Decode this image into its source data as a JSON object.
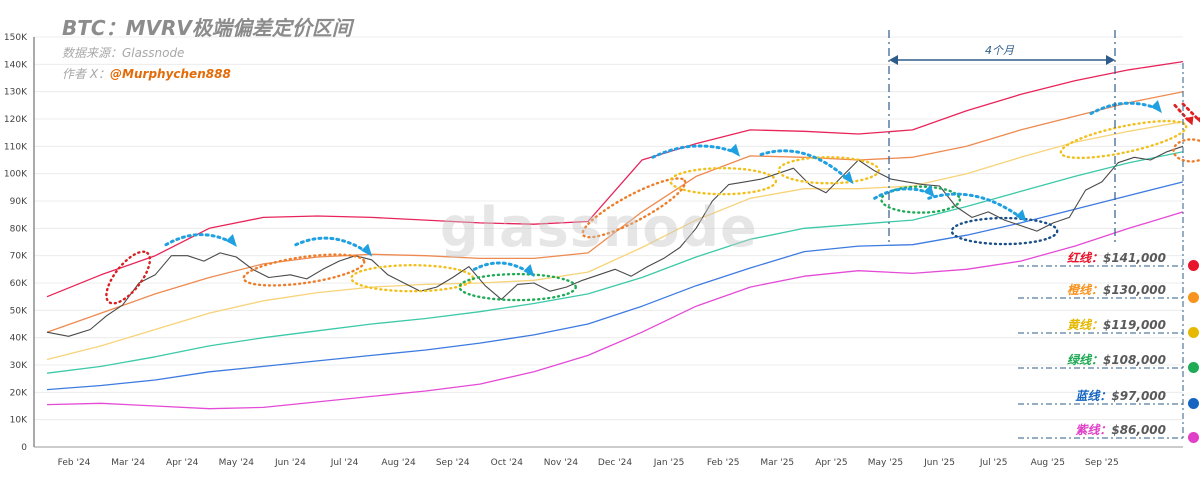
{
  "header": {
    "title": "BTC：MVRV极端偏差定价区间",
    "source": "数据来源：Glassnode",
    "author_prefix": "作者 X：",
    "author_handle": "@Murphychen888",
    "watermark": "glassnode"
  },
  "annotation": {
    "span_label": "4个月"
  },
  "levels": [
    {
      "label": "红线：",
      "value": "$141,000",
      "color": "#e8142c"
    },
    {
      "label": "橙线：",
      "value": "$130,000",
      "color": "#f7931e"
    },
    {
      "label": "黄线：",
      "value": "$119,000",
      "color": "#e6b800"
    },
    {
      "label": "绿线：",
      "value": "$108,000",
      "color": "#1faa55"
    },
    {
      "label": "蓝线：",
      "value": "$97,000",
      "color": "#1565c0"
    },
    {
      "label": "紫线：",
      "value": "$86,000",
      "color": "#e040c8"
    }
  ],
  "chart_data": {
    "type": "line",
    "title": "BTC：MVRV极端偏差定价区间",
    "ylim": [
      0,
      150000
    ],
    "yticks": [
      0,
      10000,
      20000,
      30000,
      40000,
      50000,
      60000,
      70000,
      80000,
      90000,
      100000,
      110000,
      120000,
      130000,
      140000,
      150000
    ],
    "ytick_labels": [
      "0",
      "10K",
      "20K",
      "30K",
      "40K",
      "50K",
      "60K",
      "70K",
      "80K",
      "90K",
      "100K",
      "110K",
      "120K",
      "130K",
      "140K",
      "150K"
    ],
    "x_labels": [
      "Feb '24",
      "Mar '24",
      "Apr '24",
      "May '24",
      "Jun '24",
      "Jul '24",
      "Aug '24",
      "Sep '24",
      "Oct '24",
      "Nov '24",
      "Dec '24",
      "Jan '25",
      "Feb '25",
      "Mar '25",
      "Apr '25",
      "May '25",
      "Jun '25",
      "Jul '25",
      "Aug '25",
      "Sep '25"
    ],
    "x_range_months": [
      0,
      21
    ],
    "grid": true,
    "series": [
      {
        "key": "red",
        "color": "#e8245a",
        "width": 1.3,
        "points": [
          [
            0,
            55000
          ],
          [
            1,
            63000
          ],
          [
            2,
            70000
          ],
          [
            3,
            80000
          ],
          [
            4,
            84000
          ],
          [
            5,
            84500
          ],
          [
            6,
            84000
          ],
          [
            7,
            83000
          ],
          [
            8,
            82000
          ],
          [
            9,
            81500
          ],
          [
            10,
            82500
          ],
          [
            11,
            105000
          ],
          [
            12,
            111000
          ],
          [
            13,
            116000
          ],
          [
            14,
            115500
          ],
          [
            15,
            114500
          ],
          [
            16,
            116000
          ],
          [
            17,
            123000
          ],
          [
            18,
            129000
          ],
          [
            19,
            134000
          ],
          [
            20,
            138000
          ],
          [
            21,
            141000
          ]
        ]
      },
      {
        "key": "orange",
        "color": "#ee8a50",
        "width": 1.3,
        "points": [
          [
            0,
            42000
          ],
          [
            1,
            49000
          ],
          [
            2,
            56000
          ],
          [
            3,
            62000
          ],
          [
            4,
            67000
          ],
          [
            5,
            69500
          ],
          [
            6,
            70500
          ],
          [
            7,
            70000
          ],
          [
            8,
            69000
          ],
          [
            9,
            69000
          ],
          [
            10,
            71000
          ],
          [
            11,
            86000
          ],
          [
            12,
            99000
          ],
          [
            13,
            106500
          ],
          [
            14,
            106000
          ],
          [
            15,
            105000
          ],
          [
            16,
            106000
          ],
          [
            17,
            110000
          ],
          [
            18,
            116000
          ],
          [
            19,
            121000
          ],
          [
            20,
            126000
          ],
          [
            21,
            130000
          ]
        ]
      },
      {
        "key": "yellow",
        "color": "#f7d37a",
        "width": 1.3,
        "points": [
          [
            0,
            32000
          ],
          [
            1,
            37000
          ],
          [
            2,
            43000
          ],
          [
            3,
            49000
          ],
          [
            4,
            53500
          ],
          [
            5,
            56500
          ],
          [
            6,
            58500
          ],
          [
            7,
            59500
          ],
          [
            8,
            60000
          ],
          [
            9,
            61000
          ],
          [
            10,
            64000
          ],
          [
            11,
            73000
          ],
          [
            12,
            83000
          ],
          [
            13,
            91000
          ],
          [
            14,
            94500
          ],
          [
            15,
            94500
          ],
          [
            16,
            95500
          ],
          [
            17,
            100000
          ],
          [
            18,
            106000
          ],
          [
            19,
            111500
          ],
          [
            20,
            115500
          ],
          [
            21,
            119000
          ]
        ]
      },
      {
        "key": "green",
        "color": "#3cc9a8",
        "width": 1.3,
        "points": [
          [
            0,
            27000
          ],
          [
            1,
            29500
          ],
          [
            2,
            33000
          ],
          [
            3,
            37000
          ],
          [
            4,
            40000
          ],
          [
            5,
            42500
          ],
          [
            6,
            45000
          ],
          [
            7,
            47000
          ],
          [
            8,
            49500
          ],
          [
            9,
            52500
          ],
          [
            10,
            56000
          ],
          [
            11,
            62000
          ],
          [
            12,
            69500
          ],
          [
            13,
            76000
          ],
          [
            14,
            80000
          ],
          [
            15,
            81500
          ],
          [
            16,
            83000
          ],
          [
            17,
            88000
          ],
          [
            18,
            93500
          ],
          [
            19,
            99000
          ],
          [
            20,
            104000
          ],
          [
            21,
            108000
          ]
        ]
      },
      {
        "key": "blue",
        "color": "#3d7be0",
        "width": 1.3,
        "points": [
          [
            0,
            21000
          ],
          [
            1,
            22500
          ],
          [
            2,
            24500
          ],
          [
            3,
            27500
          ],
          [
            4,
            29500
          ],
          [
            5,
            31500
          ],
          [
            6,
            33500
          ],
          [
            7,
            35500
          ],
          [
            8,
            38000
          ],
          [
            9,
            41000
          ],
          [
            10,
            45000
          ],
          [
            11,
            51500
          ],
          [
            12,
            59000
          ],
          [
            13,
            65500
          ],
          [
            14,
            71500
          ],
          [
            15,
            73500
          ],
          [
            16,
            74000
          ],
          [
            17,
            77500
          ],
          [
            18,
            82000
          ],
          [
            19,
            87000
          ],
          [
            20,
            92000
          ],
          [
            21,
            97000
          ]
        ]
      },
      {
        "key": "purple",
        "color": "#e44bd6",
        "width": 1.3,
        "points": [
          [
            0,
            15500
          ],
          [
            1,
            16000
          ],
          [
            2,
            15000
          ],
          [
            3,
            14000
          ],
          [
            4,
            14500
          ],
          [
            5,
            16500
          ],
          [
            6,
            18500
          ],
          [
            7,
            20500
          ],
          [
            8,
            23000
          ],
          [
            9,
            27500
          ],
          [
            10,
            33500
          ],
          [
            11,
            42000
          ],
          [
            12,
            51500
          ],
          [
            13,
            58500
          ],
          [
            14,
            62500
          ],
          [
            15,
            64500
          ],
          [
            16,
            63500
          ],
          [
            17,
            65000
          ],
          [
            18,
            68000
          ],
          [
            19,
            73500
          ],
          [
            20,
            80000
          ],
          [
            21,
            86000
          ]
        ]
      },
      {
        "key": "price",
        "color": "#4a4a4a",
        "width": 1.1,
        "points": [
          [
            0,
            42000
          ],
          [
            0.4,
            40500
          ],
          [
            0.8,
            43000
          ],
          [
            1.1,
            48000
          ],
          [
            1.4,
            52000
          ],
          [
            1.7,
            60000
          ],
          [
            2,
            63000
          ],
          [
            2.3,
            70000
          ],
          [
            2.6,
            70000
          ],
          [
            2.9,
            68000
          ],
          [
            3.2,
            71000
          ],
          [
            3.5,
            69500
          ],
          [
            3.8,
            65000
          ],
          [
            4.1,
            62000
          ],
          [
            4.5,
            63000
          ],
          [
            4.8,
            61500
          ],
          [
            5.1,
            65000
          ],
          [
            5.4,
            68000
          ],
          [
            5.7,
            70000
          ],
          [
            6,
            68500
          ],
          [
            6.3,
            63000
          ],
          [
            6.6,
            60000
          ],
          [
            6.9,
            57000
          ],
          [
            7.2,
            58500
          ],
          [
            7.5,
            62000
          ],
          [
            7.8,
            66000
          ],
          [
            8.1,
            59000
          ],
          [
            8.4,
            54000
          ],
          [
            8.7,
            59500
          ],
          [
            9,
            60000
          ],
          [
            9.3,
            57000
          ],
          [
            9.6,
            58500
          ],
          [
            9.9,
            61000
          ],
          [
            10.2,
            63000
          ],
          [
            10.5,
            65000
          ],
          [
            10.8,
            62500
          ],
          [
            11.1,
            66000
          ],
          [
            11.4,
            69000
          ],
          [
            11.7,
            73000
          ],
          [
            12,
            80000
          ],
          [
            12.3,
            90000
          ],
          [
            12.6,
            96000
          ],
          [
            12.9,
            97000
          ],
          [
            13.2,
            98000
          ],
          [
            13.5,
            100000
          ],
          [
            13.8,
            102000
          ],
          [
            14.1,
            96000
          ],
          [
            14.4,
            93000
          ],
          [
            14.7,
            99000
          ],
          [
            15,
            105000
          ],
          [
            15.3,
            101000
          ],
          [
            15.6,
            98000
          ],
          [
            15.9,
            97000
          ],
          [
            16.2,
            96000
          ],
          [
            16.5,
            95500
          ],
          [
            16.8,
            88000
          ],
          [
            17.1,
            84000
          ],
          [
            17.4,
            86000
          ],
          [
            17.7,
            83000
          ],
          [
            18,
            81000
          ],
          [
            18.3,
            79000
          ],
          [
            18.6,
            82000
          ],
          [
            18.9,
            84000
          ],
          [
            19.2,
            94000
          ],
          [
            19.5,
            97000
          ],
          [
            19.8,
            104000
          ],
          [
            20.1,
            106000
          ],
          [
            20.4,
            105000
          ],
          [
            20.7,
            108000
          ],
          [
            21,
            110000
          ]
        ]
      }
    ]
  }
}
